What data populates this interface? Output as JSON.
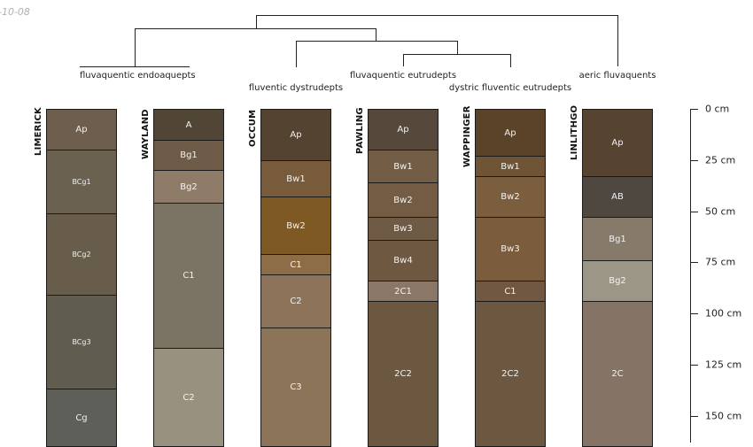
{
  "date_label": "-10-08",
  "dendrogram_groups": [
    {
      "id": "g1",
      "label": "fluvaquentic endoaquepts"
    },
    {
      "id": "g2",
      "label": "fluventic dystrudepts"
    },
    {
      "id": "g3",
      "label": "fluvaquentic eutrudepts"
    },
    {
      "id": "g4",
      "label": "dystric fluventic eutrudepts"
    },
    {
      "id": "g5",
      "label": "aeric fluvaquents"
    }
  ],
  "depth_axis": {
    "unit": "cm",
    "ticks": [
      {
        "depth": 0,
        "label": "0 cm"
      },
      {
        "depth": 25,
        "label": "25 cm"
      },
      {
        "depth": 50,
        "label": "50 cm"
      },
      {
        "depth": 75,
        "label": "75 cm"
      },
      {
        "depth": 100,
        "label": "100 cm"
      },
      {
        "depth": 125,
        "label": "125 cm"
      },
      {
        "depth": 150,
        "label": "150 cm"
      }
    ]
  },
  "profiles": [
    {
      "name": "LIMERICK",
      "horizons": [
        {
          "name": "Ap",
          "top": 0,
          "bottom": 20,
          "color": "#6e5e4e"
        },
        {
          "name": "BCg1",
          "top": 20,
          "bottom": 51,
          "color": "#6a6150"
        },
        {
          "name": "BCg2",
          "top": 51,
          "bottom": 91,
          "color": "#675d4a"
        },
        {
          "name": "BCg3",
          "top": 91,
          "bottom": 137,
          "color": "#615c50"
        },
        {
          "name": "Cg",
          "top": 137,
          "bottom": 165,
          "color": "#5e5f58"
        }
      ]
    },
    {
      "name": "WAYLAND",
      "horizons": [
        {
          "name": "A",
          "top": 0,
          "bottom": 15,
          "color": "#514536"
        },
        {
          "name": "Bg1",
          "top": 15,
          "bottom": 30,
          "color": "#6e5c49"
        },
        {
          "name": "Bg2",
          "top": 30,
          "bottom": 46,
          "color": "#8e7c69"
        },
        {
          "name": "C1",
          "top": 46,
          "bottom": 117,
          "color": "#7b7465"
        },
        {
          "name": "C2",
          "top": 117,
          "bottom": 165,
          "color": "#989180"
        }
      ]
    },
    {
      "name": "OCCUM",
      "horizons": [
        {
          "name": "Ap",
          "top": 0,
          "bottom": 25,
          "color": "#554331"
        },
        {
          "name": "Bw1",
          "top": 25,
          "bottom": 43,
          "color": "#785b3b"
        },
        {
          "name": "Bw2",
          "top": 43,
          "bottom": 71,
          "color": "#7e5924"
        },
        {
          "name": "C1",
          "top": 71,
          "bottom": 81,
          "color": "#8d6c48"
        },
        {
          "name": "C2",
          "top": 81,
          "bottom": 107,
          "color": "#8c7359"
        },
        {
          "name": "C3",
          "top": 107,
          "bottom": 165,
          "color": "#8c7459"
        }
      ]
    },
    {
      "name": "PAWLING",
      "horizons": [
        {
          "name": "Ap",
          "top": 0,
          "bottom": 20,
          "color": "#56483a"
        },
        {
          "name": "Bw1",
          "top": 20,
          "bottom": 36,
          "color": "#735d47"
        },
        {
          "name": "Bw2",
          "top": 36,
          "bottom": 53,
          "color": "#735b44"
        },
        {
          "name": "Bw3",
          "top": 53,
          "bottom": 64,
          "color": "#6f5a45"
        },
        {
          "name": "Bw4",
          "top": 64,
          "bottom": 84,
          "color": "#6e5842"
        },
        {
          "name": "2C1",
          "top": 84,
          "bottom": 94,
          "color": "#8b7767"
        },
        {
          "name": "2C2",
          "top": 94,
          "bottom": 165,
          "color": "#6c5840"
        }
      ]
    },
    {
      "name": "WAPPINGER",
      "horizons": [
        {
          "name": "Ap",
          "top": 0,
          "bottom": 23,
          "color": "#5b4329"
        },
        {
          "name": "Bw1",
          "top": 23,
          "bottom": 33,
          "color": "#6f5536"
        },
        {
          "name": "Bw2",
          "top": 33,
          "bottom": 53,
          "color": "#7b5e3e"
        },
        {
          "name": "Bw3",
          "top": 53,
          "bottom": 84,
          "color": "#7b5c3c"
        },
        {
          "name": "C1",
          "top": 84,
          "bottom": 94,
          "color": "#705842"
        },
        {
          "name": "2C2",
          "top": 94,
          "bottom": 165,
          "color": "#6c5840"
        }
      ]
    },
    {
      "name": "LINLITHGO",
      "horizons": [
        {
          "name": "Ap",
          "top": 0,
          "bottom": 33,
          "color": "#564431"
        },
        {
          "name": "AB",
          "top": 33,
          "bottom": 53,
          "color": "#4f4841"
        },
        {
          "name": "Bg1",
          "top": 53,
          "bottom": 74,
          "color": "#867a6b"
        },
        {
          "name": "Bg2",
          "top": 74,
          "bottom": 94,
          "color": "#9b9685"
        },
        {
          "name": "2C",
          "top": 94,
          "bottom": 165,
          "color": "#857465"
        }
      ]
    }
  ]
}
